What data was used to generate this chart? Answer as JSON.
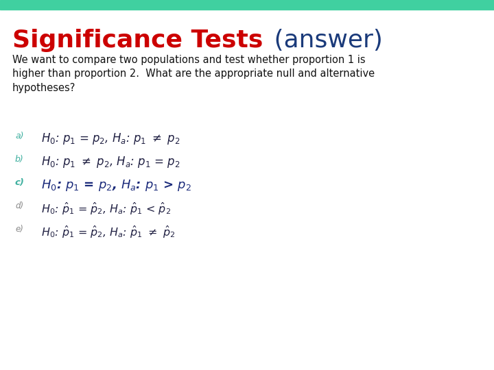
{
  "title_part1": "Significance Tests",
  "title_part2": " (answer)",
  "title_color1": "#cc0000",
  "title_color2": "#1a3a7a",
  "body_text": "We want to compare two populations and test whether proportion 1 is\nhigher than proportion 2.  What are the appropriate null and alternative\nhypotheses?",
  "body_color": "#111111",
  "bg_color": "#ffffff",
  "header_bar_color": "#40d0a0",
  "label_colors": [
    "#40b0a0",
    "#40b0a0",
    "#40b0a0",
    "#888888",
    "#888888"
  ],
  "formula_color_normal": "#222244",
  "formula_color_answer": "#1a2a7a",
  "option_labels": [
    "a)",
    "b)",
    "c)",
    "d)",
    "e)"
  ]
}
